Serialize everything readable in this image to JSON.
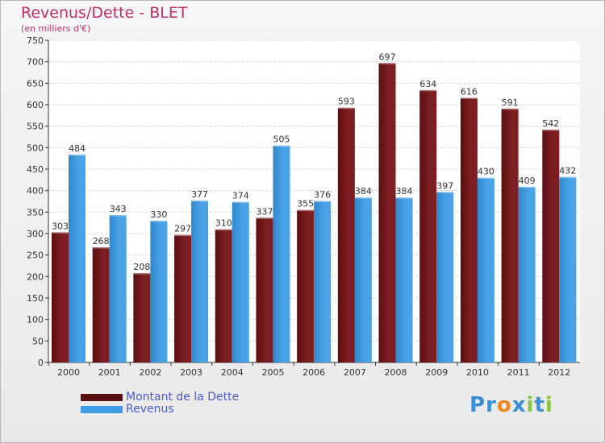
{
  "header": {
    "title": "Revenus/Dette - BLET",
    "subtitle": "(en milliers d'€)"
  },
  "chart_data": {
    "type": "bar",
    "categories": [
      "2000",
      "2001",
      "2002",
      "2003",
      "2004",
      "2005",
      "2006",
      "2007",
      "2008",
      "2009",
      "2010",
      "2011",
      "2012"
    ],
    "series": [
      {
        "name": "Montant de la Dette",
        "color": "#7d1f22",
        "values": [
          303,
          268,
          208,
          297,
          310,
          337,
          355,
          593,
          697,
          634,
          616,
          591,
          542
        ]
      },
      {
        "name": "Revenus",
        "color": "#4aa3e6",
        "values": [
          484,
          343,
          330,
          377,
          374,
          505,
          376,
          384,
          384,
          397,
          430,
          409,
          432
        ]
      }
    ],
    "yticks": [
      "0",
      "50",
      "100",
      "150",
      "200",
      "250",
      "300",
      "350",
      "400",
      "450",
      "500",
      "550",
      "600",
      "650",
      "700",
      "750"
    ],
    "ylim": [
      0,
      750
    ],
    "grid": true,
    "legend_position": "bottom-left"
  },
  "legend": {
    "items": [
      {
        "label": "Montant de la Dette",
        "color": "#5a1010"
      },
      {
        "label": "Revenus",
        "color": "#3f9ee6"
      }
    ]
  },
  "logo": {
    "letters": [
      "P",
      "r",
      "o",
      "x",
      "i",
      "t",
      "i"
    ],
    "colors": [
      "#3a8fd9",
      "#3a8fd9",
      "#f08a1c",
      "#3a8fd9",
      "#8cc43f",
      "#3a8fd9",
      "#8cc43f"
    ]
  }
}
